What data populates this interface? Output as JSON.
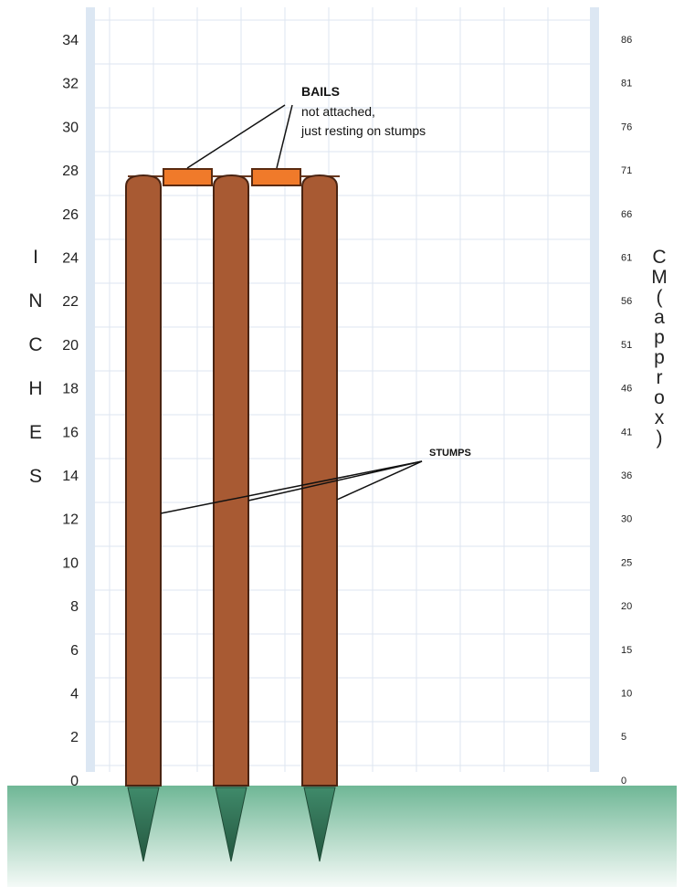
{
  "left_axis": {
    "ticks": [
      "34",
      "32",
      "30",
      "28",
      "26",
      "24",
      "22",
      "20",
      "18",
      "16",
      "14",
      "12",
      "10",
      "8",
      "6",
      "4",
      "2",
      "0"
    ],
    "title_letters": [
      "I",
      "N",
      "C",
      "H",
      "E",
      "S"
    ]
  },
  "right_axis": {
    "ticks": [
      "86",
      "81",
      "76",
      "71",
      "66",
      "61",
      "56",
      "51",
      "46",
      "41",
      "36",
      "30",
      "25",
      "20",
      "15",
      "10",
      "5",
      "0"
    ],
    "title_letters": [
      "C",
      "M",
      "(",
      "a",
      "p",
      "p",
      "r",
      "o",
      "x",
      ")"
    ]
  },
  "annotations": {
    "bails_title": "BAILS",
    "bails_line1": "not attached,",
    "bails_line2": "just resting on stumps",
    "stumps": "STUMPS"
  },
  "colors": {
    "stump": "#a85a33",
    "bail": "#f07a2a",
    "ground": "#72b89a",
    "rail": "#dce7f3",
    "grid": "#d9e3ee"
  }
}
